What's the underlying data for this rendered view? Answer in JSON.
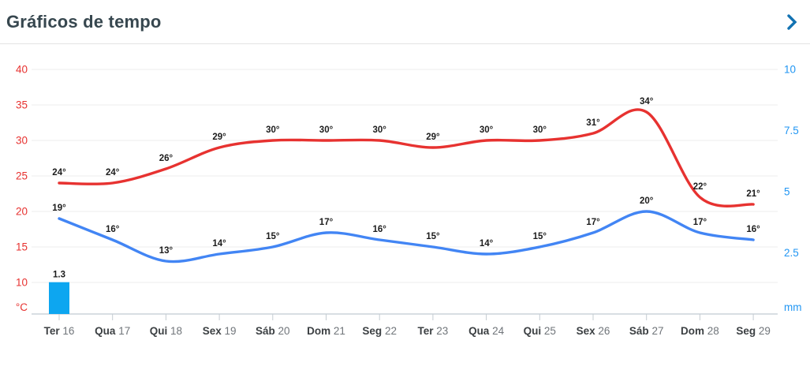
{
  "header": {
    "title": "Gráficos de tempo",
    "chevron_icon": "chevron-right",
    "accent_color": "#1272b2"
  },
  "chart_data": {
    "type": "line",
    "title": "Gráficos de tempo",
    "legend": "none",
    "grid": true,
    "categories": [
      {
        "day": "Ter",
        "date": "16"
      },
      {
        "day": "Qua",
        "date": "17"
      },
      {
        "day": "Qui",
        "date": "18"
      },
      {
        "day": "Sex",
        "date": "19"
      },
      {
        "day": "Sáb",
        "date": "20"
      },
      {
        "day": "Dom",
        "date": "21"
      },
      {
        "day": "Seg",
        "date": "22"
      },
      {
        "day": "Ter",
        "date": "23"
      },
      {
        "day": "Qua",
        "date": "24"
      },
      {
        "day": "Qui",
        "date": "25"
      },
      {
        "day": "Sex",
        "date": "26"
      },
      {
        "day": "Sáb",
        "date": "27"
      },
      {
        "day": "Dom",
        "date": "28"
      },
      {
        "day": "Seg",
        "date": "29"
      }
    ],
    "series": [
      {
        "name": "temperatura-maxima",
        "type": "line",
        "axis": "temp",
        "color": "#e73230",
        "values": [
          24,
          24,
          26,
          29,
          30,
          30,
          30,
          29,
          30,
          30,
          31,
          34,
          22,
          21
        ],
        "labels": [
          "24°",
          "24°",
          "26°",
          "29°",
          "30°",
          "30°",
          "30°",
          "29°",
          "30°",
          "30°",
          "31°",
          "34°",
          "22°",
          "21°"
        ]
      },
      {
        "name": "temperatura-minima",
        "type": "line",
        "axis": "temp",
        "color": "#4285f4",
        "values": [
          19,
          16,
          13,
          14,
          15,
          17,
          16,
          15,
          14,
          15,
          17,
          20,
          17,
          16
        ],
        "labels": [
          "19°",
          "16°",
          "13°",
          "14°",
          "15°",
          "17°",
          "16°",
          "15°",
          "14°",
          "15°",
          "17°",
          "20°",
          "17°",
          "16°"
        ]
      },
      {
        "name": "precipitacao",
        "type": "bar",
        "axis": "precip",
        "color": "#0da6f0",
        "values": [
          1.3,
          null,
          null,
          null,
          null,
          null,
          null,
          null,
          null,
          null,
          null,
          null,
          null,
          null
        ],
        "labels": [
          "1.3",
          null,
          null,
          null,
          null,
          null,
          null,
          null,
          null,
          null,
          null,
          null,
          null,
          null
        ]
      }
    ],
    "axes": {
      "temp": {
        "side": "left",
        "unit": "°C",
        "color": "#e73230",
        "tick_labels": [
          "40",
          "35",
          "30",
          "25",
          "20",
          "15",
          "10"
        ],
        "tick_values": [
          40,
          35,
          30,
          25,
          20,
          15,
          10
        ],
        "range": [
          10,
          40
        ]
      },
      "precip": {
        "side": "right",
        "unit": "mm",
        "color": "#2196f3",
        "tick_labels": [
          "10",
          "7.5",
          "5",
          "2.5"
        ],
        "tick_values": [
          10,
          7.5,
          5,
          2.5
        ],
        "range": [
          0,
          10
        ]
      }
    },
    "style": {
      "grid_color": "#ececec",
      "axis_line_color": "#ccd3da",
      "tick_color": "#c4ccd2",
      "value_label_color": "#1c1c1c",
      "day_name_color": "#3c4043",
      "day_number_color": "#70757a"
    }
  }
}
